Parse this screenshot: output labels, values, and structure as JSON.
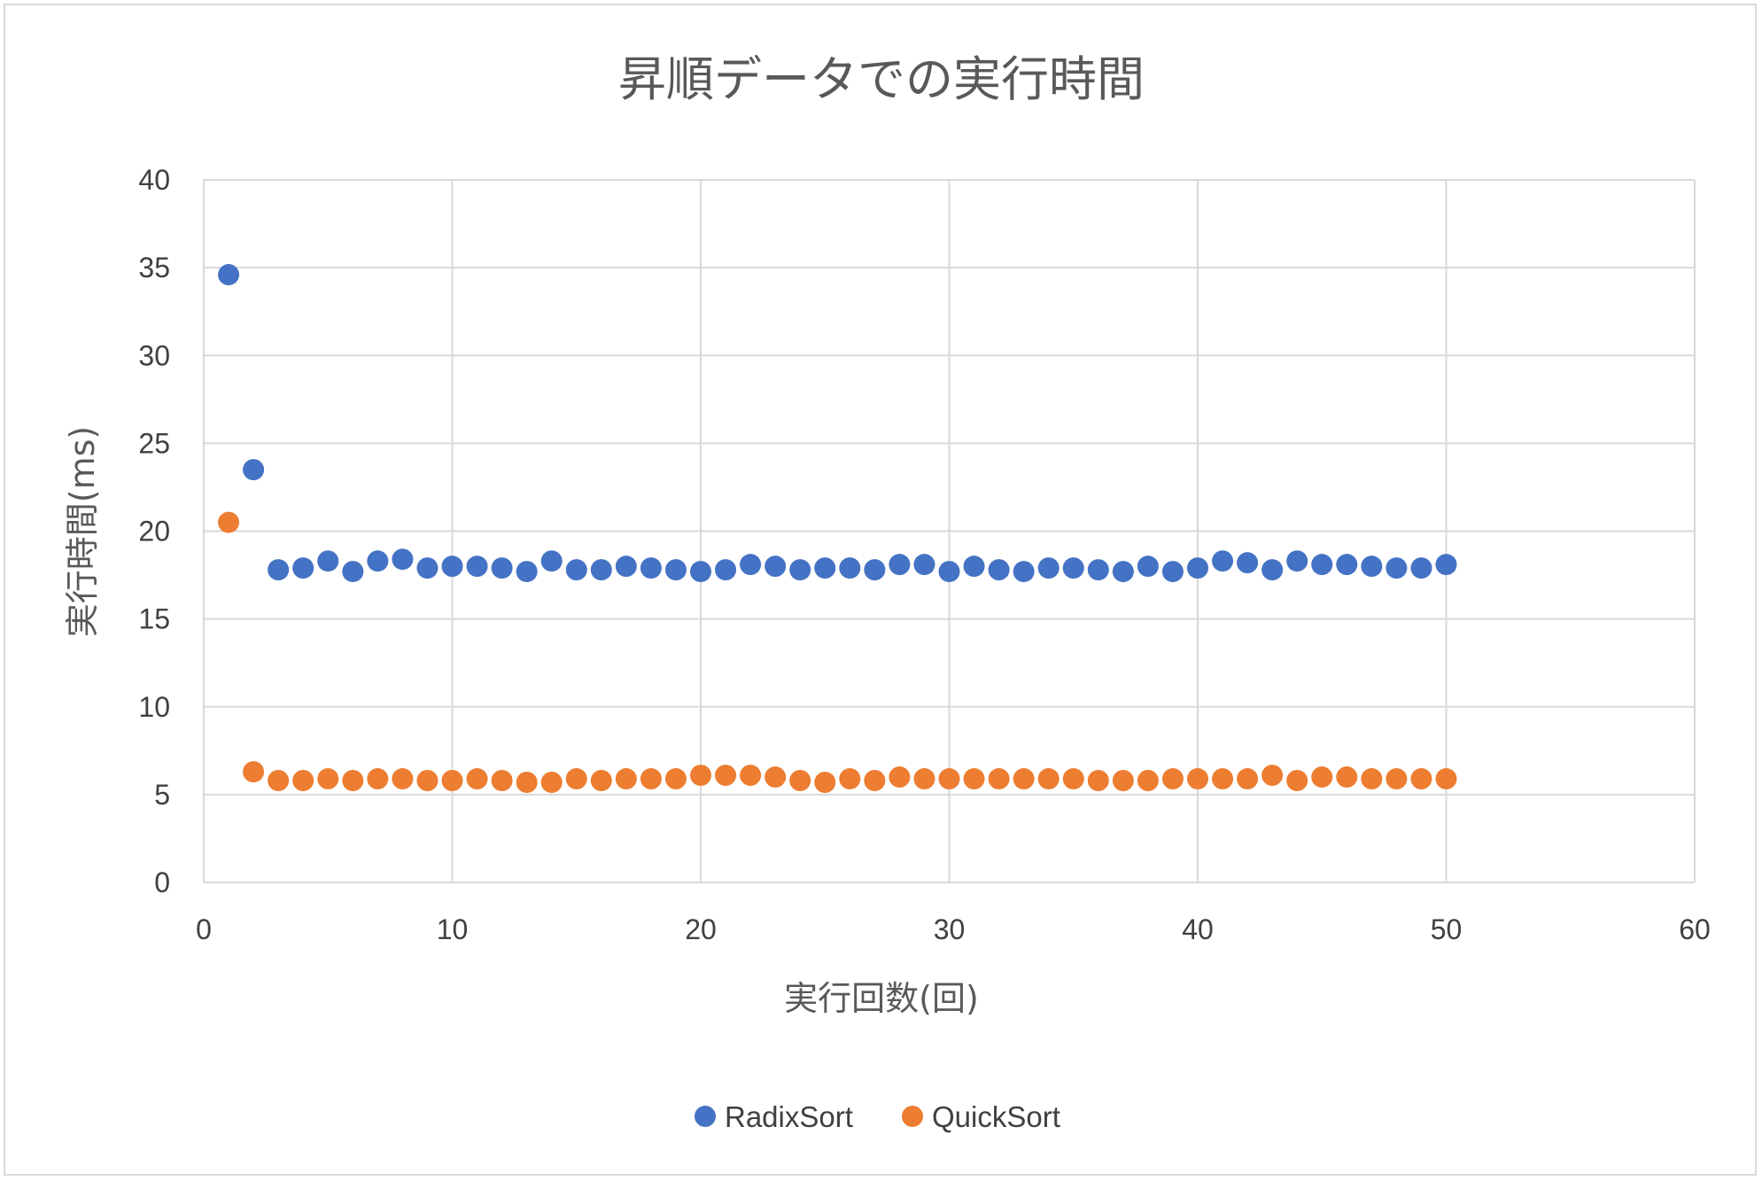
{
  "chart_data": {
    "type": "scatter",
    "title": "昇順データでの実行時間",
    "xlabel": "実行回数(回)",
    "ylabel": "実行時間(ms)",
    "xlim": [
      0,
      60
    ],
    "ylim": [
      0,
      40
    ],
    "x_ticks": [
      "0",
      "10",
      "20",
      "30",
      "40",
      "50",
      "60"
    ],
    "y_ticks": [
      "0",
      "5",
      "10",
      "15",
      "20",
      "25",
      "30",
      "35",
      "40"
    ],
    "grid": true,
    "legend_position": "bottom",
    "series": [
      {
        "name": "RadixSort",
        "color": "#4472c4",
        "x": [
          1,
          2,
          3,
          4,
          5,
          6,
          7,
          8,
          9,
          10,
          11,
          12,
          13,
          14,
          15,
          16,
          17,
          18,
          19,
          20,
          21,
          22,
          23,
          24,
          25,
          26,
          27,
          28,
          29,
          30,
          31,
          32,
          33,
          34,
          35,
          36,
          37,
          38,
          39,
          40,
          41,
          42,
          43,
          44,
          45,
          46,
          47,
          48,
          49,
          50
        ],
        "y": [
          34.6,
          23.5,
          17.8,
          17.9,
          18.3,
          17.7,
          18.3,
          18.4,
          17.9,
          18.0,
          18.0,
          17.9,
          17.7,
          18.3,
          17.8,
          17.8,
          18.0,
          17.9,
          17.8,
          17.7,
          17.8,
          18.1,
          18.0,
          17.8,
          17.9,
          17.9,
          17.8,
          18.1,
          18.1,
          17.7,
          18.0,
          17.8,
          17.7,
          17.9,
          17.9,
          17.8,
          17.7,
          18.0,
          17.7,
          17.9,
          18.3,
          18.2,
          17.8,
          18.3,
          18.1,
          18.1,
          18.0,
          17.9,
          17.9,
          18.1
        ]
      },
      {
        "name": "QuickSort",
        "color": "#ed7d31",
        "x": [
          1,
          2,
          3,
          4,
          5,
          6,
          7,
          8,
          9,
          10,
          11,
          12,
          13,
          14,
          15,
          16,
          17,
          18,
          19,
          20,
          21,
          22,
          23,
          24,
          25,
          26,
          27,
          28,
          29,
          30,
          31,
          32,
          33,
          34,
          35,
          36,
          37,
          38,
          39,
          40,
          41,
          42,
          43,
          44,
          45,
          46,
          47,
          48,
          49,
          50
        ],
        "y": [
          20.5,
          6.3,
          5.8,
          5.8,
          5.9,
          5.8,
          5.9,
          5.9,
          5.8,
          5.8,
          5.9,
          5.8,
          5.7,
          5.7,
          5.9,
          5.8,
          5.9,
          5.9,
          5.9,
          6.1,
          6.1,
          6.1,
          6.0,
          5.8,
          5.7,
          5.9,
          5.8,
          6.0,
          5.9,
          5.9,
          5.9,
          5.9,
          5.9,
          5.9,
          5.9,
          5.8,
          5.8,
          5.8,
          5.9,
          5.9,
          5.9,
          5.9,
          6.1,
          5.8,
          6.0,
          6.0,
          5.9,
          5.9,
          5.9,
          5.9
        ]
      }
    ]
  }
}
